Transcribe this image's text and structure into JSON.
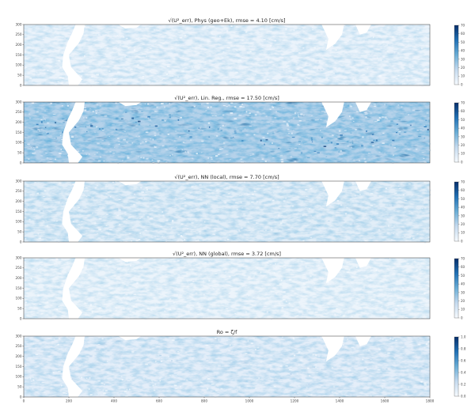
{
  "chart_data": [
    {
      "type": "heatmap",
      "title": "√(U²_err), Phys (geo+Ek), rmse = 4.10 [cm/s]",
      "y_ticks": [
        0,
        50,
        100,
        150,
        200,
        250,
        300
      ],
      "ylim": [
        0,
        300
      ],
      "xlim": [
        0,
        1800
      ],
      "colorbar_ticks": [
        "70",
        "60",
        "50",
        "40",
        "30",
        "20",
        "10",
        "0"
      ],
      "colorbar_range": [
        0,
        70
      ],
      "intensity": 0.18
    },
    {
      "type": "heatmap",
      "title": "√(U²_err), Lin. Reg., rmse = 17.50 [cm/s]",
      "y_ticks": [
        0,
        50,
        100,
        150,
        200,
        250,
        300
      ],
      "ylim": [
        0,
        300
      ],
      "xlim": [
        0,
        1800
      ],
      "colorbar_ticks": [
        "70",
        "60",
        "50",
        "40",
        "30",
        "20",
        "10",
        "0"
      ],
      "colorbar_range": [
        0,
        70
      ],
      "intensity": 0.85
    },
    {
      "type": "heatmap",
      "title": "√(U²_err), NN (local), rmse = 7.70 [cm/s]",
      "y_ticks": [
        0,
        50,
        100,
        150,
        200,
        250,
        300
      ],
      "ylim": [
        0,
        300
      ],
      "xlim": [
        0,
        1800
      ],
      "colorbar_ticks": [
        "70",
        "60",
        "50",
        "40",
        "30",
        "20",
        "10",
        "0"
      ],
      "colorbar_range": [
        0,
        70
      ],
      "intensity": 0.3
    },
    {
      "type": "heatmap",
      "title": "√(U²_err), NN (global), rmse = 3.72 [cm/s]",
      "y_ticks": [
        0,
        50,
        100,
        150,
        200,
        250,
        300
      ],
      "ylim": [
        0,
        300
      ],
      "xlim": [
        0,
        1800
      ],
      "colorbar_ticks": [
        "70",
        "60",
        "50",
        "40",
        "30",
        "20",
        "10",
        "0"
      ],
      "colorbar_range": [
        0,
        70
      ],
      "intensity": 0.16
    },
    {
      "type": "heatmap",
      "title": "Ro = ζ/f",
      "y_ticks": [
        0,
        50,
        100,
        150,
        200,
        250,
        300
      ],
      "ylim": [
        0,
        300
      ],
      "xlim": [
        0,
        1800
      ],
      "x_ticks": [
        0,
        200,
        400,
        600,
        800,
        1000,
        1200,
        1400,
        1600,
        1800
      ],
      "colorbar_ticks": [
        "1.0",
        "0.8",
        "0.6",
        "0.4",
        "0.2",
        "0.0"
      ],
      "colorbar_range": [
        0,
        1
      ],
      "intensity": 0.28
    }
  ],
  "colors": {
    "cmap_low": "#f7fbff",
    "cmap_mid": "#6baed6",
    "cmap_high": "#08306b",
    "land": "#ffffff"
  }
}
